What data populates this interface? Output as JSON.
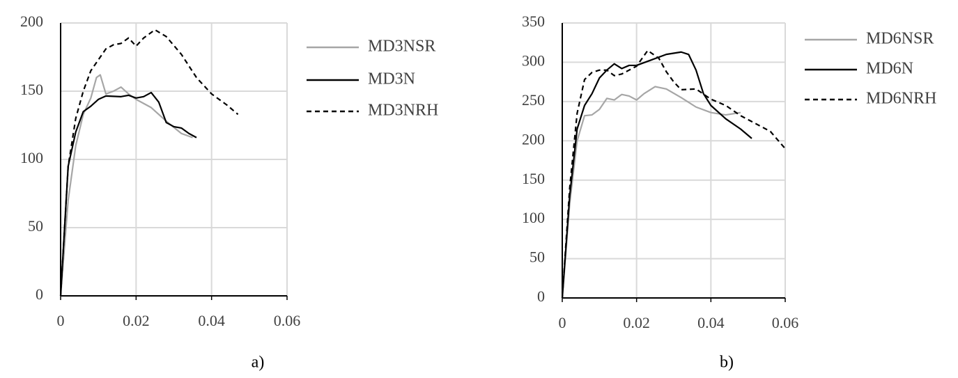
{
  "chart_data": [
    {
      "type": "line",
      "caption": "a)",
      "xlim": [
        0,
        0.06
      ],
      "xticks": [
        0,
        0.02,
        0.04,
        0.06
      ],
      "ylim": [
        0,
        200
      ],
      "yticks": [
        0,
        50,
        100,
        150,
        200
      ],
      "grid": true,
      "legend": "right",
      "series": [
        {
          "name": "MD3NSR",
          "color": "#a6a6a6",
          "style": "solid",
          "x": [
            0,
            0.002,
            0.004,
            0.006,
            0.008,
            0.0095,
            0.0105,
            0.012,
            0.014,
            0.016,
            0.018,
            0.02,
            0.024,
            0.028,
            0.032,
            0.035
          ],
          "values": [
            0,
            70,
            110,
            133,
            145,
            160,
            162,
            148,
            150,
            153,
            148,
            144,
            138,
            128,
            119,
            116
          ]
        },
        {
          "name": "MD3N",
          "color": "#000000",
          "style": "solid",
          "x": [
            0,
            0.002,
            0.004,
            0.006,
            0.008,
            0.01,
            0.012,
            0.016,
            0.018,
            0.02,
            0.022,
            0.024,
            0.026,
            0.028,
            0.03,
            0.032,
            0.034,
            0.036
          ],
          "values": [
            0,
            95,
            120,
            135,
            139,
            144,
            146.5,
            146,
            147,
            145,
            146,
            149,
            142,
            127,
            124,
            123,
            119,
            116
          ]
        },
        {
          "name": "MD3NRH",
          "color": "#000000",
          "style": "dashed",
          "x": [
            0,
            0.002,
            0.004,
            0.006,
            0.008,
            0.01,
            0.012,
            0.014,
            0.016,
            0.018,
            0.02,
            0.022,
            0.025,
            0.028,
            0.032,
            0.036,
            0.04,
            0.044,
            0.047
          ],
          "values": [
            0,
            95,
            130,
            150,
            165,
            173,
            181,
            184,
            185,
            189,
            183,
            189,
            195,
            190,
            177,
            160,
            148,
            140,
            133
          ]
        }
      ]
    },
    {
      "type": "line",
      "caption": "b)",
      "xlim": [
        0,
        0.06
      ],
      "xticks": [
        0,
        0.02,
        0.04,
        0.06
      ],
      "ylim": [
        0,
        350
      ],
      "yticks": [
        0,
        50,
        100,
        150,
        200,
        250,
        300,
        350
      ],
      "grid": true,
      "legend": "right",
      "series": [
        {
          "name": "MD6NSR",
          "color": "#a6a6a6",
          "style": "solid",
          "x": [
            0,
            0.002,
            0.004,
            0.006,
            0.008,
            0.01,
            0.012,
            0.014,
            0.016,
            0.018,
            0.02,
            0.022,
            0.025,
            0.028,
            0.032,
            0.036,
            0.04,
            0.044,
            0.048
          ],
          "values": [
            0,
            120,
            200,
            232,
            233,
            240,
            254,
            252,
            259,
            257,
            252,
            260,
            269,
            266,
            255,
            243,
            236,
            233,
            236
          ]
        },
        {
          "name": "MD6N",
          "color": "#000000",
          "style": "solid",
          "x": [
            0,
            0.002,
            0.004,
            0.006,
            0.008,
            0.01,
            0.012,
            0.014,
            0.016,
            0.018,
            0.02,
            0.024,
            0.028,
            0.032,
            0.034,
            0.036,
            0.038,
            0.04,
            0.044,
            0.048,
            0.051
          ],
          "values": [
            0,
            130,
            215,
            245,
            260,
            280,
            290,
            298,
            292,
            296,
            296,
            303,
            310,
            313,
            310,
            290,
            260,
            245,
            228,
            215,
            203
          ]
        },
        {
          "name": "MD6NRH",
          "color": "#000000",
          "style": "dashed",
          "x": [
            0,
            0.002,
            0.004,
            0.006,
            0.008,
            0.01,
            0.012,
            0.014,
            0.016,
            0.018,
            0.02,
            0.023,
            0.026,
            0.028,
            0.03,
            0.032,
            0.036,
            0.04,
            0.044,
            0.048,
            0.052,
            0.056,
            0.06
          ],
          "values": [
            0,
            140,
            235,
            278,
            287,
            290,
            290,
            283,
            285,
            290,
            295,
            315,
            305,
            288,
            275,
            265,
            266,
            253,
            245,
            232,
            222,
            212,
            190
          ]
        }
      ]
    }
  ]
}
